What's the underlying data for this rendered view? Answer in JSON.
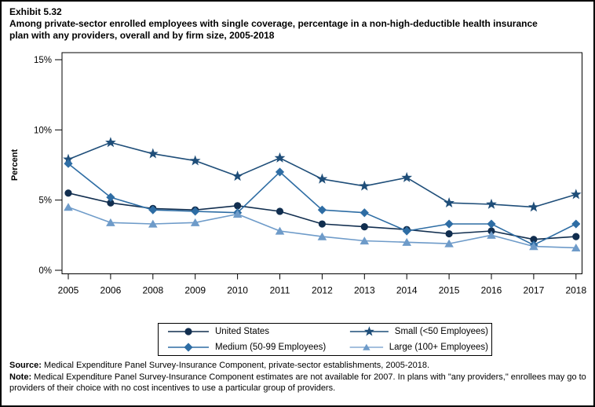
{
  "page": {
    "exhibit_label": "Exhibit 5.32",
    "title": "Among private-sector enrolled employees with single coverage, percentage in a non-high-deductible health insurance plan with any providers, overall and by firm size, 2005-2018"
  },
  "chart_data": {
    "type": "line",
    "title": "Percentage in a non-high-deductible health insurance plan with any providers, overall and by firm size, 2005-2018",
    "xlabel": "",
    "ylabel": "Percent",
    "ylim": [
      0,
      15
    ],
    "yticks": [
      0,
      5,
      10,
      15
    ],
    "ytick_labels": [
      "0%",
      "5%",
      "10%",
      "15%"
    ],
    "categories": [
      "2005",
      "2006",
      "2008",
      "2009",
      "2010",
      "2011",
      "2012",
      "2013",
      "2014",
      "2015",
      "2016",
      "2017",
      "2018"
    ],
    "series": [
      {
        "name": "United States",
        "marker": "circle",
        "color": "#112e4f",
        "values": [
          5.5,
          4.8,
          4.4,
          4.3,
          4.6,
          4.2,
          3.3,
          3.1,
          2.9,
          2.6,
          2.8,
          2.2,
          2.4
        ]
      },
      {
        "name": "Small (<50 Employees)",
        "marker": "star",
        "color": "#1f4e79",
        "values": [
          7.9,
          9.1,
          8.3,
          7.8,
          6.7,
          8.0,
          6.5,
          6.0,
          6.6,
          4.8,
          4.7,
          4.5,
          5.4
        ]
      },
      {
        "name": "Medium (50-99 Employees)",
        "marker": "diamond",
        "color": "#2e6da4",
        "values": [
          7.6,
          5.2,
          4.3,
          4.2,
          4.1,
          7.0,
          4.3,
          4.1,
          2.8,
          3.3,
          3.3,
          1.8,
          3.3
        ]
      },
      {
        "name": "Large (100+ Employees)",
        "marker": "triangle",
        "color": "#6e9bc9",
        "values": [
          4.5,
          3.4,
          3.3,
          3.4,
          4.0,
          2.8,
          2.4,
          2.1,
          2.0,
          1.9,
          2.5,
          1.7,
          1.6
        ]
      }
    ],
    "legend_position": "bottom",
    "grid": false
  },
  "footer": {
    "source_label": "Source:",
    "source_text": " Medical Expenditure Panel Survey-Insurance Component, private-sector establishments, 2005-2018.",
    "note_label": "Note:",
    "note_text": " Medical Expenditure Panel Survey-Insurance Component estimates are not available for 2007. In plans with \"any providers,\" enrollees may go to providers of their choice with no cost incentives to use a particular group of providers."
  }
}
